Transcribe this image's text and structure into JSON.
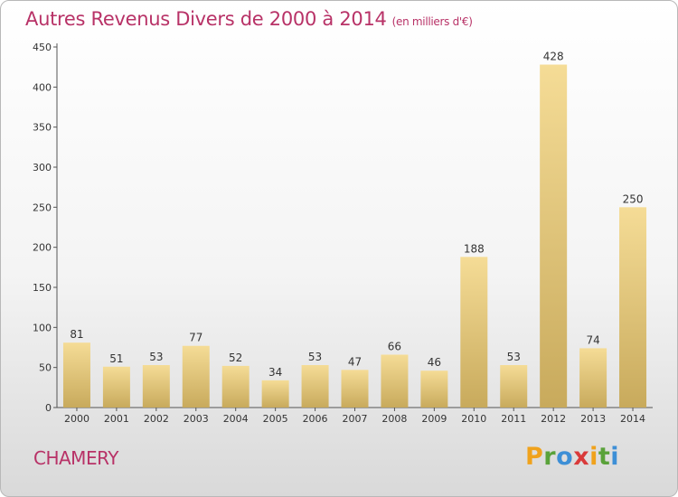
{
  "title": "Autres Revenus Divers de 2000 à 2014",
  "unit": "(en milliers d'€)",
  "commune": "CHAMERY",
  "logo": {
    "letters": [
      "P",
      "r",
      "o",
      "x",
      "i",
      "t",
      "i"
    ],
    "colors": [
      "#f0a21c",
      "#5aa23a",
      "#3d8fd6",
      "#d93a3a",
      "#f0a21c",
      "#5aa23a",
      "#3d8fd6"
    ]
  },
  "chart_data": {
    "type": "bar",
    "categories": [
      "2000",
      "2001",
      "2002",
      "2003",
      "2004",
      "2005",
      "2006",
      "2007",
      "2008",
      "2009",
      "2010",
      "2011",
      "2012",
      "2013",
      "2014"
    ],
    "values": [
      81,
      51,
      53,
      77,
      52,
      34,
      53,
      47,
      66,
      46,
      188,
      53,
      428,
      74,
      250
    ],
    "ylim": [
      0,
      450
    ],
    "yticks": [
      0,
      50,
      100,
      150,
      200,
      250,
      300,
      350,
      400,
      450
    ],
    "grid": false,
    "bar_color_light": "#f5dc96",
    "bar_color_dark": "#c8aa5c"
  }
}
